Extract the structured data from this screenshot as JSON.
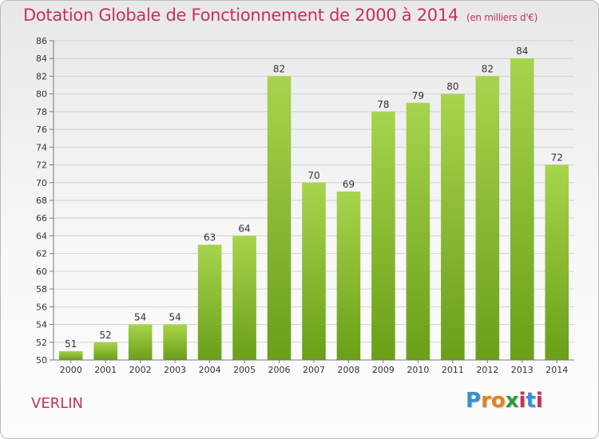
{
  "title": "Dotation Globale de Fonctionnement de 2000 à 2014",
  "unit": "(en milliers d'€)",
  "town": "VERLIN",
  "logo": {
    "letters": [
      "P",
      "r",
      "o",
      "x",
      "i",
      "t",
      "i"
    ],
    "colors": [
      "#3a8fd0",
      "#e0821f",
      "#e0821f",
      "#2f9a3a",
      "#c8305a",
      "#3a8fd0",
      "#c8305a"
    ]
  },
  "colors": {
    "bar_top": "#a7d44d",
    "bar_bottom": "#6a9f17",
    "accent": "#c8305a"
  },
  "chart_data": {
    "type": "bar",
    "title": "Dotation Globale de Fonctionnement de 2000 à 2014",
    "subtitle": "(en milliers d'€)",
    "categories": [
      "2000",
      "2001",
      "2002",
      "2003",
      "2004",
      "2005",
      "2006",
      "2007",
      "2008",
      "2009",
      "2010",
      "2011",
      "2012",
      "2013",
      "2014"
    ],
    "values": [
      51,
      52,
      54,
      54,
      63,
      64,
      82,
      70,
      69,
      78,
      79,
      80,
      82,
      84,
      72
    ],
    "ylim": [
      50,
      86
    ],
    "yticks": [
      50,
      52,
      54,
      56,
      58,
      60,
      62,
      64,
      66,
      68,
      70,
      72,
      74,
      76,
      78,
      80,
      82,
      84,
      86
    ],
    "grid": true,
    "data_labels": true
  }
}
